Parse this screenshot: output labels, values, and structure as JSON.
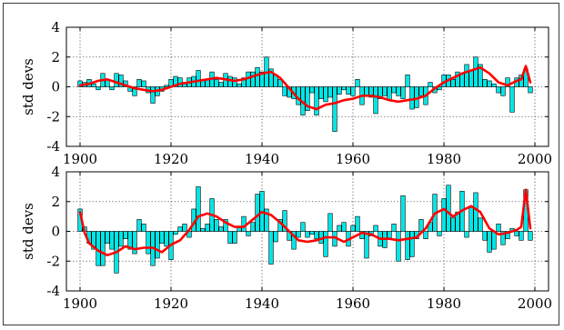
{
  "chart_data": [
    {
      "type": "bar",
      "ylabel": "std devs",
      "xlim": [
        1897,
        2003
      ],
      "ylim": [
        -4,
        4
      ],
      "xticks": [
        1900,
        1920,
        1940,
        1960,
        1980,
        2000
      ],
      "yticks": [
        4,
        2,
        0,
        -2,
        -4
      ],
      "grid": true,
      "bar_color": "#00e6e6",
      "line_color": "#ff0000",
      "bars": {
        "x": [
          1900,
          1901,
          1902,
          1903,
          1904,
          1905,
          1906,
          1907,
          1908,
          1909,
          1910,
          1911,
          1912,
          1913,
          1914,
          1915,
          1916,
          1917,
          1918,
          1919,
          1920,
          1921,
          1922,
          1923,
          1924,
          1925,
          1926,
          1927,
          1928,
          1929,
          1930,
          1931,
          1932,
          1933,
          1934,
          1935,
          1936,
          1937,
          1938,
          1939,
          1940,
          1941,
          1942,
          1943,
          1944,
          1945,
          1946,
          1947,
          1948,
          1949,
          1950,
          1951,
          1952,
          1953,
          1954,
          1955,
          1956,
          1957,
          1958,
          1959,
          1960,
          1961,
          1962,
          1963,
          1964,
          1965,
          1966,
          1967,
          1968,
          1969,
          1970,
          1971,
          1972,
          1973,
          1974,
          1975,
          1976,
          1977,
          1978,
          1979,
          1980,
          1981,
          1982,
          1983,
          1984,
          1985,
          1986,
          1987,
          1988,
          1989,
          1990,
          1991,
          1992,
          1993,
          1994,
          1995,
          1996,
          1997,
          1998,
          1999
        ],
        "values": [
          0.4,
          0.3,
          0.5,
          0.2,
          -0.2,
          0.9,
          0.5,
          -0.2,
          0.9,
          0.8,
          0.4,
          -0.3,
          -0.6,
          0.5,
          0.4,
          -0.4,
          -1.1,
          -0.6,
          -0.3,
          0.1,
          0.5,
          0.7,
          0.6,
          0.3,
          0.6,
          0.7,
          1.1,
          0.5,
          0.5,
          1.0,
          0.5,
          0.3,
          0.9,
          0.7,
          0.6,
          0.2,
          0.6,
          1.0,
          1.0,
          1.3,
          1.0,
          2.0,
          1.2,
          0.8,
          0.5,
          -0.6,
          -0.7,
          -0.8,
          -1.2,
          -1.9,
          -1.6,
          -0.4,
          -1.9,
          -0.8,
          -1.0,
          -0.7,
          -3.0,
          -0.5,
          -0.2,
          -0.5,
          -0.6,
          0.5,
          -1.2,
          -0.6,
          -0.7,
          -1.8,
          -0.8,
          -0.6,
          -0.9,
          -0.4,
          -0.6,
          -0.8,
          0.8,
          -1.5,
          -1.4,
          -0.6,
          -1.2,
          0.3,
          -0.4,
          -0.2,
          0.8,
          0.8,
          0.5,
          1.0,
          0.9,
          1.5,
          1.1,
          2.0,
          1.5,
          0.5,
          0.4,
          0.2,
          -0.4,
          -0.6,
          0.6,
          -1.7,
          0.6,
          0.8,
          1.2,
          -0.4
        ]
      },
      "smooth": {
        "x": [
          1900,
          1902,
          1904,
          1906,
          1908,
          1910,
          1912,
          1914,
          1916,
          1918,
          1920,
          1922,
          1924,
          1926,
          1928,
          1930,
          1932,
          1934,
          1936,
          1938,
          1940,
          1942,
          1944,
          1946,
          1948,
          1950,
          1952,
          1954,
          1956,
          1958,
          1960,
          1962,
          1964,
          1966,
          1968,
          1970,
          1972,
          1974,
          1976,
          1978,
          1980,
          1982,
          1984,
          1986,
          1988,
          1990,
          1992,
          1994,
          1996,
          1997,
          1998,
          1999
        ],
        "values": [
          0.1,
          0.2,
          0.4,
          0.5,
          0.3,
          0.1,
          -0.1,
          -0.2,
          -0.3,
          -0.2,
          0.0,
          0.2,
          0.3,
          0.4,
          0.5,
          0.6,
          0.5,
          0.4,
          0.5,
          0.7,
          0.9,
          1.0,
          0.6,
          -0.1,
          -0.8,
          -1.3,
          -1.5,
          -1.2,
          -1.1,
          -0.9,
          -0.8,
          -0.6,
          -0.6,
          -0.7,
          -0.9,
          -1.0,
          -0.9,
          -0.8,
          -0.6,
          -0.1,
          0.3,
          0.6,
          0.9,
          1.1,
          1.3,
          0.9,
          0.3,
          0.1,
          0.4,
          0.5,
          1.4,
          0.3
        ]
      }
    },
    {
      "type": "bar",
      "ylabel": "std devs",
      "xlim": [
        1897,
        2003
      ],
      "ylim": [
        -4,
        4
      ],
      "xticks": [
        1900,
        1920,
        1940,
        1960,
        1980,
        2000
      ],
      "yticks": [
        4,
        2,
        0,
        -2,
        -4
      ],
      "grid": true,
      "bar_color": "#00e6e6",
      "line_color": "#ff0000",
      "bars": {
        "x": [
          1900,
          1901,
          1902,
          1903,
          1904,
          1905,
          1906,
          1907,
          1908,
          1909,
          1910,
          1911,
          1912,
          1913,
          1914,
          1915,
          1916,
          1917,
          1918,
          1919,
          1920,
          1921,
          1922,
          1923,
          1924,
          1925,
          1926,
          1927,
          1928,
          1929,
          1930,
          1931,
          1932,
          1933,
          1934,
          1935,
          1936,
          1937,
          1938,
          1939,
          1940,
          1941,
          1942,
          1943,
          1944,
          1945,
          1946,
          1947,
          1948,
          1949,
          1950,
          1951,
          1952,
          1953,
          1954,
          1955,
          1956,
          1957,
          1958,
          1959,
          1960,
          1961,
          1962,
          1963,
          1964,
          1965,
          1966,
          1967,
          1968,
          1969,
          1970,
          1971,
          1972,
          1973,
          1974,
          1975,
          1976,
          1977,
          1978,
          1979,
          1980,
          1981,
          1982,
          1983,
          1984,
          1985,
          1986,
          1987,
          1988,
          1989,
          1990,
          1991,
          1992,
          1993,
          1994,
          1995,
          1996,
          1997,
          1998,
          1999
        ],
        "values": [
          1.5,
          0.3,
          -0.8,
          -1.2,
          -2.3,
          -2.3,
          -0.8,
          -1.2,
          -2.8,
          -1.0,
          -0.5,
          -1.2,
          -1.5,
          0.8,
          0.5,
          -1.5,
          -2.3,
          -1.8,
          -0.8,
          -1.0,
          -1.9,
          -0.2,
          0.3,
          0.5,
          -0.4,
          1.5,
          3.0,
          0.2,
          0.5,
          2.2,
          0.8,
          0.3,
          0.8,
          -0.8,
          -0.8,
          0.3,
          1.0,
          -0.3,
          0.6,
          2.5,
          2.7,
          1.5,
          -2.2,
          -0.7,
          0.8,
          1.4,
          -0.6,
          -1.2,
          -0.4,
          0.6,
          -0.4,
          -0.2,
          -0.5,
          -0.8,
          -1.7,
          1.2,
          -1.0,
          0.4,
          0.6,
          -1.0,
          0.4,
          1.0,
          -0.5,
          -1.8,
          -0.3,
          0.4,
          -1.0,
          -1.1,
          -0.5,
          0.5,
          -2.0,
          2.4,
          -1.9,
          -1.7,
          -0.5,
          0.8,
          -0.5,
          0.6,
          2.5,
          -0.3,
          2.2,
          3.1,
          0.9,
          1.3,
          2.7,
          -0.4,
          1.6,
          2.6,
          0.9,
          -0.6,
          -1.4,
          -1.2,
          0.5,
          -0.9,
          -0.5,
          0.2,
          -0.3,
          -0.6,
          2.8,
          -0.6
        ]
      },
      "smooth": {
        "x": [
          1900,
          1901,
          1902,
          1904,
          1906,
          1908,
          1910,
          1912,
          1914,
          1916,
          1918,
          1920,
          1922,
          1924,
          1926,
          1928,
          1930,
          1932,
          1934,
          1936,
          1938,
          1940,
          1942,
          1944,
          1946,
          1948,
          1950,
          1952,
          1954,
          1956,
          1958,
          1960,
          1962,
          1964,
          1966,
          1968,
          1970,
          1972,
          1974,
          1976,
          1978,
          1980,
          1982,
          1984,
          1986,
          1988,
          1990,
          1992,
          1994,
          1996,
          1997,
          1998,
          1999
        ],
        "values": [
          1.3,
          -0.1,
          -0.8,
          -1.3,
          -1.6,
          -1.4,
          -1.0,
          -1.2,
          -1.1,
          -1.1,
          -1.4,
          -0.9,
          -0.6,
          0.1,
          1.0,
          1.2,
          1.0,
          0.6,
          0.3,
          0.3,
          0.8,
          1.3,
          1.1,
          0.6,
          0.0,
          -0.6,
          -0.7,
          -0.6,
          -0.4,
          -0.4,
          -0.7,
          -0.4,
          -0.1,
          -0.2,
          -0.5,
          -0.5,
          -0.6,
          -0.5,
          -0.4,
          0.2,
          1.2,
          1.5,
          1.0,
          1.4,
          1.7,
          1.3,
          0.2,
          -0.2,
          -0.1,
          0.1,
          0.3,
          2.8,
          0.2
        ]
      }
    }
  ]
}
